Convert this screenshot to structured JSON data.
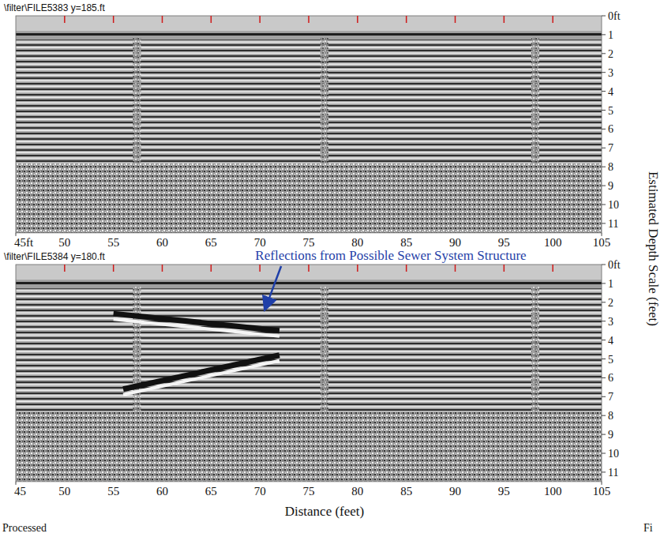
{
  "chart_data": [
    {
      "type": "radargram",
      "title": "\\filter\\FILE5383  y=185.ft",
      "xlim": [
        45,
        105
      ],
      "xticks": [
        {
          "value": 45,
          "label": "45ft"
        },
        50,
        55,
        60,
        65,
        70,
        75,
        80,
        85,
        90,
        95,
        100,
        105
      ],
      "ylim": [
        0,
        11.5
      ],
      "yticks": [
        {
          "value": 0,
          "label": "0ft"
        },
        1,
        2,
        3,
        4,
        5,
        6,
        7,
        8,
        9,
        10,
        11
      ],
      "y_label": "Estimated Depth Scale (feet)"
    },
    {
      "type": "radargram",
      "title": "\\filter\\FILE5384  y=180.ft",
      "xlim": [
        45,
        105
      ],
      "xticks": [
        45,
        50,
        55,
        60,
        65,
        70,
        75,
        80,
        85,
        90,
        95,
        100,
        105
      ],
      "ylim": [
        0,
        11.5
      ],
      "yticks": [
        {
          "value": 0,
          "label": "0ft"
        },
        1,
        2,
        3,
        4,
        5,
        6,
        7,
        8,
        9,
        10,
        11
      ],
      "x_label": "Distance (feet)",
      "annotations": [
        {
          "text": "Reflections from Possible Sewer System Structure",
          "x": 70.4,
          "y": 2.4
        }
      ],
      "series": [
        {
          "x": [
            55,
            72
          ],
          "values": [
            2.6,
            3.5
          ]
        },
        {
          "x": [
            56,
            72
          ],
          "values": [
            6.6,
            4.8
          ]
        }
      ]
    }
  ],
  "captions": {
    "left": "Processed",
    "right": "Fi"
  }
}
